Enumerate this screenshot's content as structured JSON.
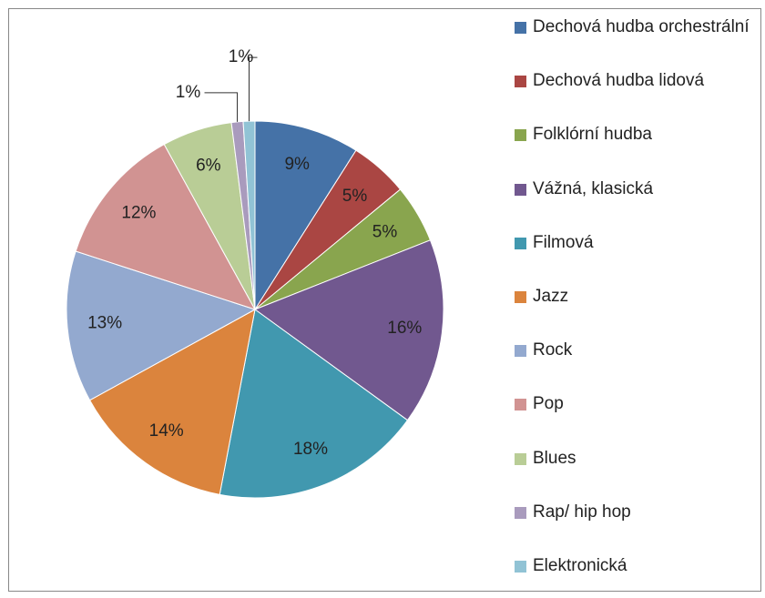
{
  "chart_data": {
    "type": "pie",
    "categories": [
      "Dechová hudba orchestrální",
      "Dechová hudba lidová",
      "Folklórní hudba",
      "Vážná, klasická",
      "Filmová",
      "Jazz",
      "Rock",
      "Pop",
      "Blues",
      "Rap/ hip hop",
      "Elektronická"
    ],
    "values": [
      9,
      5,
      5,
      16,
      18,
      14,
      13,
      12,
      6,
      1,
      1
    ],
    "value_labels": [
      "9%",
      "5%",
      "5%",
      "16%",
      "18%",
      "14%",
      "13%",
      "12%",
      "6%",
      "1%",
      "1%"
    ],
    "colors": [
      "#4572a7",
      "#aa4643",
      "#89a54e",
      "#71588f",
      "#4198af",
      "#db843d",
      "#93a9cf",
      "#d19392",
      "#b9cd96",
      "#a99bbd",
      "#91c3d5"
    ],
    "legend": "right"
  }
}
